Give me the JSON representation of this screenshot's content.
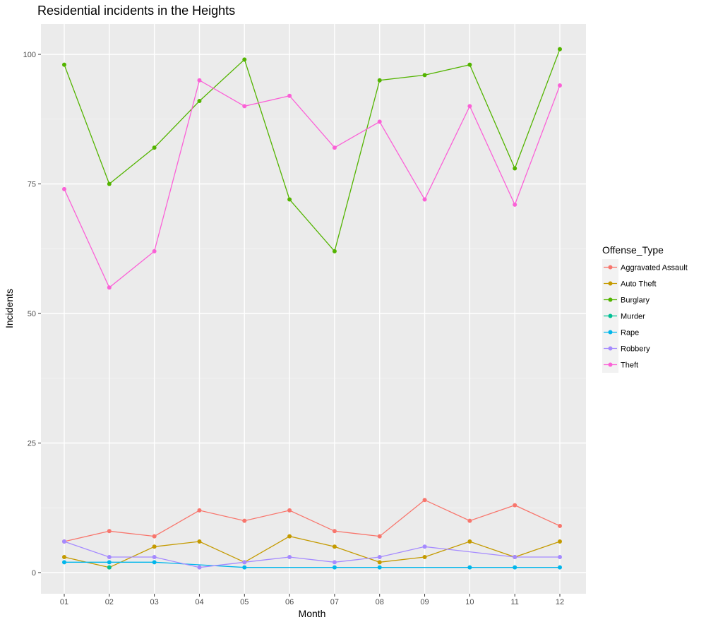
{
  "chart_data": {
    "type": "line",
    "title": "Residential incidents in the Heights",
    "xlabel": "Month",
    "ylabel": "Incidents",
    "categories": [
      "01",
      "02",
      "03",
      "04",
      "05",
      "06",
      "07",
      "08",
      "09",
      "10",
      "11",
      "12"
    ],
    "ylim": [
      0,
      105
    ],
    "yticks": [
      0,
      25,
      50,
      75,
      100
    ],
    "grid": true,
    "legend": {
      "title": "Offense_Type",
      "position": "right"
    },
    "series": [
      {
        "name": "Aggravated Assault",
        "color": "#F8766D",
        "values": [
          6,
          8,
          7,
          12,
          10,
          12,
          8,
          7,
          14,
          10,
          13,
          9
        ]
      },
      {
        "name": "Auto Theft",
        "color": "#C49A00",
        "values": [
          3,
          1,
          5,
          6,
          2,
          7,
          5,
          2,
          3,
          6,
          3,
          6
        ]
      },
      {
        "name": "Burglary",
        "color": "#53B400",
        "values": [
          98,
          75,
          82,
          91,
          99,
          72,
          62,
          95,
          96,
          98,
          78,
          101
        ]
      },
      {
        "name": "Murder",
        "color": "#00C094",
        "values": [
          null,
          1,
          null,
          null,
          null,
          null,
          null,
          null,
          null,
          null,
          null,
          null
        ]
      },
      {
        "name": "Rape",
        "color": "#00B6EB",
        "values": [
          2,
          2,
          2,
          null,
          1,
          null,
          1,
          1,
          null,
          1,
          1,
          1
        ]
      },
      {
        "name": "Robbery",
        "color": "#A58AFF",
        "values": [
          6,
          3,
          3,
          1,
          2,
          3,
          2,
          3,
          5,
          null,
          3,
          3
        ]
      },
      {
        "name": "Theft",
        "color": "#FB61D7",
        "values": [
          74,
          55,
          62,
          95,
          90,
          92,
          82,
          87,
          72,
          90,
          71,
          94
        ]
      }
    ]
  }
}
